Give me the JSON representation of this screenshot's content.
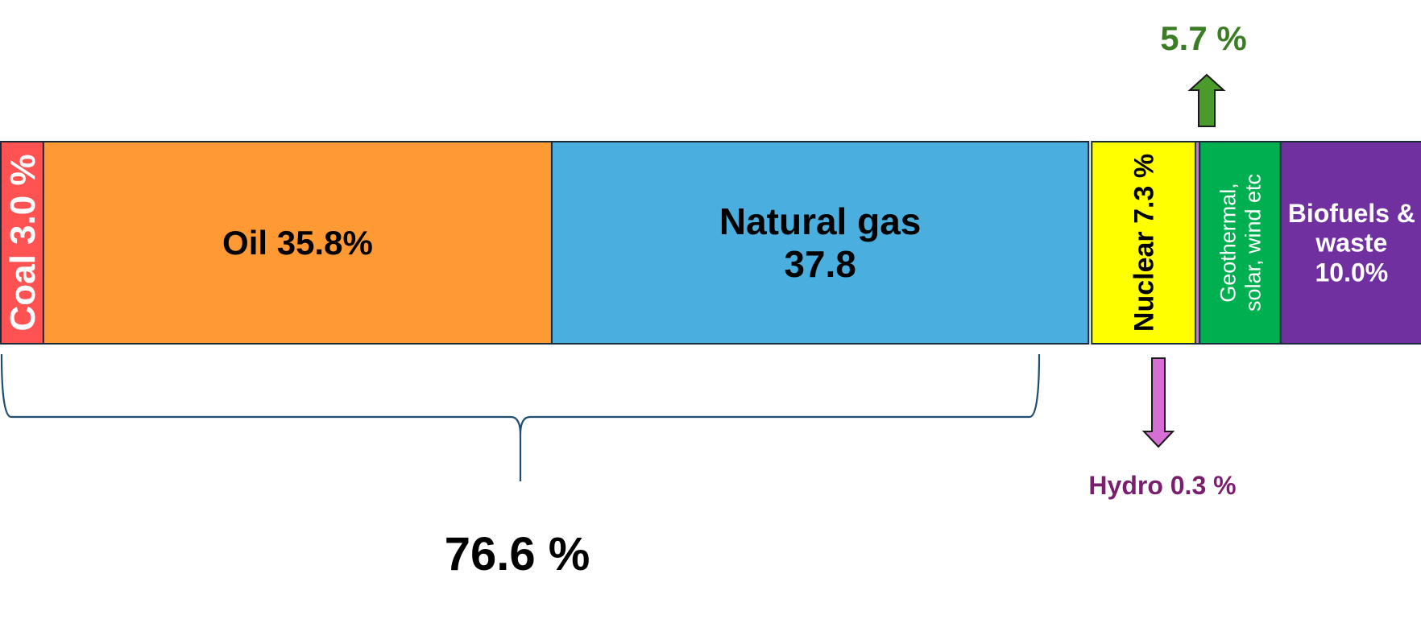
{
  "chart_data": {
    "type": "bar",
    "orientation": "horizontal-stacked",
    "categories": [
      "Coal",
      "Oil",
      "Natural gas",
      "Nuclear",
      "Hydro",
      "Geothermal, solar, wind etc",
      "Biofuels & waste"
    ],
    "values": [
      3.0,
      35.8,
      37.8,
      7.3,
      0.3,
      5.7,
      10.0
    ],
    "labels": [
      "Coal 3.0 %",
      "Oil 35.8%",
      "Natural gas\n37.8",
      "Nuclear 7.3 %",
      "",
      "Geothermal,\nsolar, wind etc",
      "Biofuels &\nwaste\n10.0%"
    ],
    "colors": [
      "#ff5252",
      "#ff9933",
      "#4aafdf",
      "#ffff00",
      "#d56fd3",
      "#00b050",
      "#7030a0"
    ],
    "label_colors": [
      "#ffffff",
      "#000000",
      "#000000",
      "#000000",
      "#000000",
      "#ffffff",
      "#ffffff"
    ],
    "annotations": {
      "fossil_total": {
        "text": "76.6 %",
        "spans": [
          "Coal",
          "Oil",
          "Natural gas"
        ],
        "color": "#000000",
        "bracket_color": "#1f4e6e"
      },
      "renewables_callout": {
        "text": "5.7 %",
        "target": "Geothermal, solar, wind etc",
        "color": "#3b7d23",
        "arrow_color": "#4a9a2c",
        "direction": "up"
      },
      "hydro_callout": {
        "text": "Hydro 0.3 %",
        "target": "Hydro",
        "color": "#7a1f6e",
        "arrow_color": "#d56fd3",
        "direction": "down"
      }
    },
    "xlim": [
      0,
      100
    ],
    "title": "",
    "xlabel": "",
    "ylabel": "",
    "grid": false,
    "legend": "none"
  }
}
